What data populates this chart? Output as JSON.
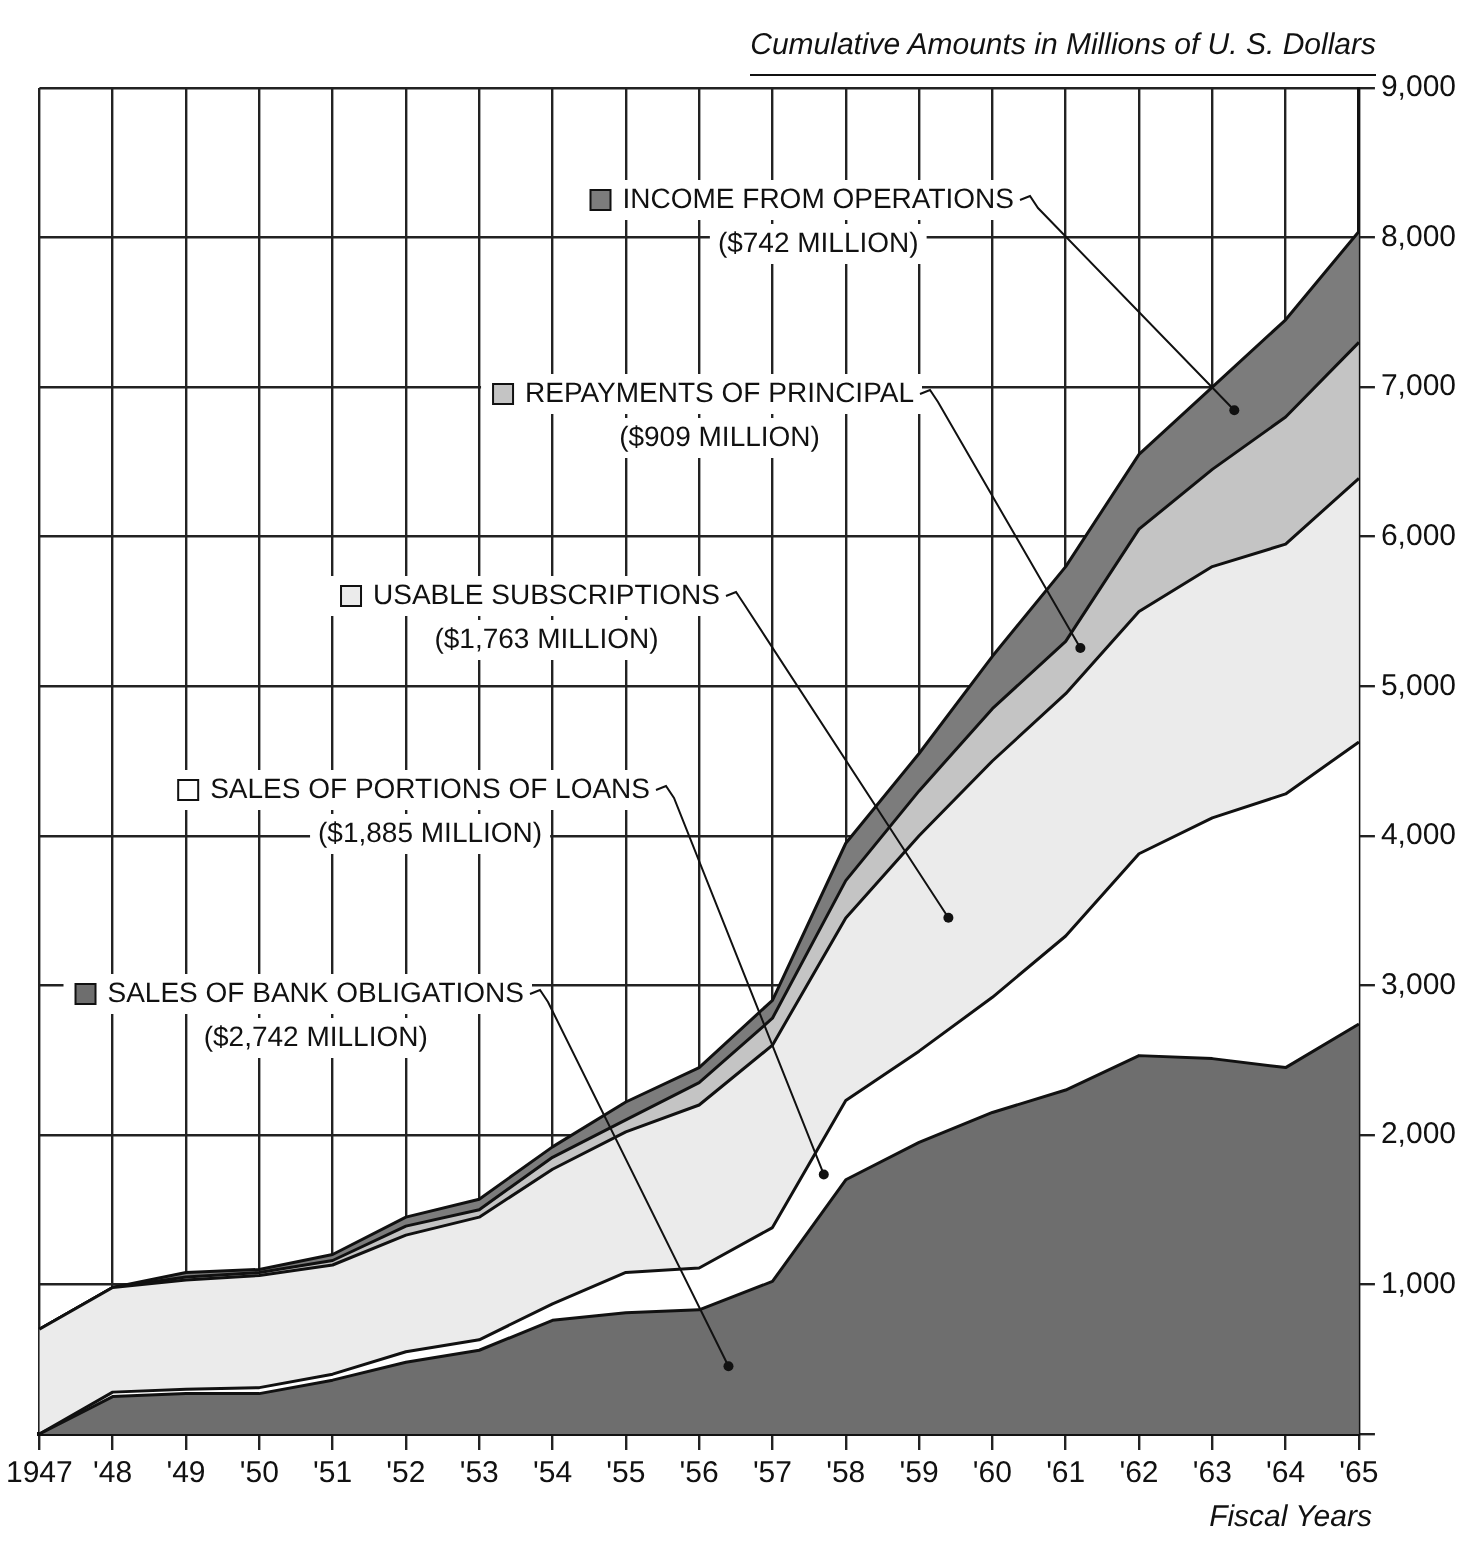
{
  "chart_data": {
    "type": "area",
    "stacked": true,
    "xlabel": "Fiscal Years",
    "ylabel": "Cumulative Amounts in Millions of U. S. Dollars",
    "categories": [
      "1947",
      "'48",
      "'49",
      "'50",
      "'51",
      "'52",
      "'53",
      "'54",
      "'55",
      "'56",
      "'57",
      "'58",
      "'59",
      "'60",
      "'61",
      "'62",
      "'63",
      "'64",
      "'65"
    ],
    "series": [
      {
        "name": "SALES OF BANK OBLIGATIONS",
        "color": "#6e6e6e",
        "values": [
          0,
          250,
          270,
          270,
          360,
          480,
          560,
          760,
          810,
          830,
          1020,
          1700,
          1950,
          2150,
          2300,
          2530,
          2510,
          2450,
          2742
        ]
      },
      {
        "name": "SALES OF PORTIONS OF LOANS",
        "color": "#ffffff",
        "values": [
          0,
          30,
          30,
          40,
          40,
          70,
          70,
          110,
          270,
          280,
          360,
          530,
          610,
          770,
          1030,
          1350,
          1610,
          1830,
          1885
        ]
      },
      {
        "name": "USABLE SUBSCRIPTIONS",
        "color": "#ebebeb",
        "values": [
          700,
          700,
          730,
          750,
          730,
          780,
          820,
          900,
          940,
          1090,
          1220,
          1220,
          1440,
          1580,
          1620,
          1620,
          1680,
          1670,
          1763
        ]
      },
      {
        "name": "REPAYMENTS OF PRINCIPAL",
        "color": "#c4c4c4",
        "values": [
          0,
          0,
          20,
          20,
          30,
          60,
          50,
          80,
          80,
          150,
          180,
          250,
          300,
          350,
          350,
          550,
          650,
          850,
          909
        ]
      },
      {
        "name": "INCOME FROM OPERATIONS",
        "color": "#7c7c7c",
        "values": [
          0,
          0,
          30,
          20,
          40,
          60,
          70,
          70,
          120,
          100,
          120,
          250,
          250,
          350,
          500,
          500,
          550,
          650,
          742
        ]
      }
    ],
    "annotations": [
      "($2,742 MILLION)",
      "($1,885 MILLION)",
      "($1,763 MILLION)",
      "($909 MILLION)",
      "($742 MILLION)"
    ],
    "ylim": [
      0,
      9000
    ],
    "yticks": [
      {
        "value": 0,
        "label": null
      },
      {
        "value": 1000,
        "label": "1,000"
      },
      {
        "value": 2000,
        "label": "2,000"
      },
      {
        "value": 3000,
        "label": "3,000"
      },
      {
        "value": 4000,
        "label": "4,000"
      },
      {
        "value": 5000,
        "label": "5,000"
      },
      {
        "value": 6000,
        "label": "6,000"
      },
      {
        "value": 7000,
        "label": "7,000"
      },
      {
        "value": 8000,
        "label": "8,000"
      },
      {
        "value": 9000,
        "label": "9,000"
      }
    ],
    "grid": true,
    "legend": "top left",
    "marker": "none",
    "line_style": "solid"
  }
}
